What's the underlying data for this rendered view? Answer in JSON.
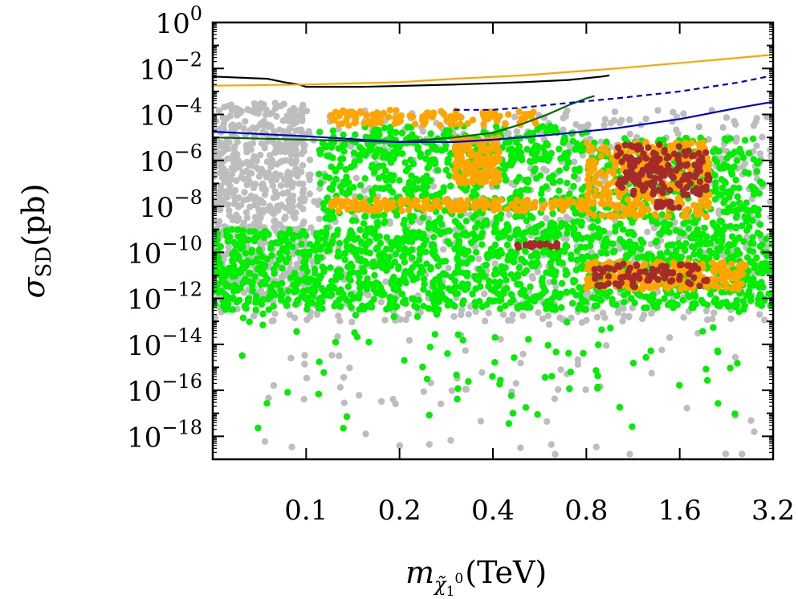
{
  "chart_data": {
    "type": "scatter",
    "title": "",
    "xlabel": {
      "base": "m",
      "subscript": "χ̃",
      "subsub": "1",
      "sup": "0",
      "unit": "(TeV)"
    },
    "ylabel": {
      "base": "σ",
      "subscript": "SD",
      "unit": "(pb)"
    },
    "x_scale": "log2",
    "y_scale": "log10",
    "xlim": [
      0.05,
      3.2
    ],
    "ylim": [
      1e-19,
      1
    ],
    "x_ticks": [
      0.1,
      0.2,
      0.4,
      0.8,
      1.6,
      3.2
    ],
    "x_tick_labels": [
      "0.1",
      "0.2",
      "0.4",
      "0.8",
      "1.6",
      "3.2"
    ],
    "y_ticks": [
      {
        "base": "10",
        "exp": "0"
      },
      {
        "base": "10",
        "exp": "−2"
      },
      {
        "base": "10",
        "exp": "−4"
      },
      {
        "base": "10",
        "exp": "−6"
      },
      {
        "base": "10",
        "exp": "−8"
      },
      {
        "base": "10",
        "exp": "−10"
      },
      {
        "base": "10",
        "exp": "−12"
      },
      {
        "base": "10",
        "exp": "−14"
      },
      {
        "base": "10",
        "exp": "−16"
      },
      {
        "base": "10",
        "exp": "−18"
      }
    ],
    "y_tick_values": [
      0,
      -2,
      -4,
      -6,
      -8,
      -10,
      -12,
      -14,
      -16,
      -18
    ],
    "colors": {
      "gray": "#bdbdbd",
      "green": "#00ee00",
      "orange": "#ffa500",
      "brown": "#a52a2a",
      "black_line": "#000000",
      "orange_line": "#ffa500",
      "darkgreen_line": "#006400",
      "blue_line": "#0000cc",
      "blue_dashed": "#0000cc"
    },
    "scatter_regions": [
      {
        "name": "gray",
        "color": "#bdbdbd",
        "blobs": [
          {
            "x": [
              0.05,
              3.2
            ],
            "logy": [
              -13,
              -3.8
            ],
            "n": 900
          },
          {
            "x": [
              0.05,
              0.1
            ],
            "logy": [
              -12,
              -3.5
            ],
            "n": 500
          },
          {
            "x": [
              0.07,
              3.0
            ],
            "logy": [
              -18.8,
              -13
            ],
            "n": 70
          }
        ]
      },
      {
        "name": "green",
        "color": "#00ee00",
        "blobs": [
          {
            "x": [
              0.05,
              3.2
            ],
            "logy": [
              -12.5,
              -9
            ],
            "n": 1400
          },
          {
            "x": [
              0.11,
              3.0
            ],
            "logy": [
              -9,
              -5
            ],
            "n": 800
          },
          {
            "x": [
              0.06,
              2.5
            ],
            "logy": [
              -17.8,
              -12.5
            ],
            "n": 80
          },
          {
            "x": [
              0.11,
              0.8
            ],
            "logy": [
              -6,
              -4.5
            ],
            "n": 150
          }
        ]
      },
      {
        "name": "orange",
        "color": "#ffa500",
        "blobs": [
          {
            "x": [
              0.12,
              0.8
            ],
            "logy": [
              -8.2,
              -7.7
            ],
            "n": 180
          },
          {
            "x": [
              0.3,
              0.42
            ],
            "logy": [
              -7,
              -5
            ],
            "n": 150
          },
          {
            "x": [
              0.8,
              2.0
            ],
            "logy": [
              -8.5,
              -5.2
            ],
            "n": 300
          },
          {
            "x": [
              0.8,
              2.6
            ],
            "logy": [
              -11.6,
              -10.4
            ],
            "n": 250
          },
          {
            "x": [
              0.12,
              0.55
            ],
            "logy": [
              -4.5,
              -3.8
            ],
            "n": 120
          }
        ]
      },
      {
        "name": "brown",
        "color": "#a52a2a",
        "blobs": [
          {
            "x": [
              1.0,
              2.0
            ],
            "logy": [
              -7.5,
              -5.3
            ],
            "n": 160
          },
          {
            "x": [
              0.85,
              2.0
            ],
            "logy": [
              -11.5,
              -10.5
            ],
            "n": 80
          },
          {
            "x": [
              0.48,
              0.65
            ],
            "logy": [
              -9.8,
              -9.6
            ],
            "n": 20
          },
          {
            "x": [
              1.35,
              1.6
            ],
            "logy": [
              -8.1,
              -7.8
            ],
            "n": 15
          }
        ]
      }
    ],
    "series": [
      {
        "name": "black_line",
        "color": "#000000",
        "dash": false,
        "x": [
          0.05,
          0.075,
          0.085,
          0.095,
          0.1,
          0.15,
          0.3,
          0.5,
          0.7,
          0.9,
          0.95
        ],
        "logy": [
          -2.35,
          -2.45,
          -2.6,
          -2.7,
          -2.8,
          -2.8,
          -2.7,
          -2.6,
          -2.5,
          -2.35,
          -2.3
        ]
      },
      {
        "name": "orange_line",
        "color": "#ffa500",
        "dash": false,
        "x": [
          0.05,
          0.1,
          0.2,
          0.3,
          0.5,
          1.0,
          2.0,
          3.2
        ],
        "logy": [
          -2.75,
          -2.7,
          -2.6,
          -2.45,
          -2.3,
          -2.0,
          -1.65,
          -1.4
        ]
      },
      {
        "name": "darkgreen_line",
        "color": "#006400",
        "dash": false,
        "x": [
          0.05,
          0.1,
          0.2,
          0.3,
          0.4,
          0.5,
          0.6,
          0.7,
          0.8,
          0.85
        ],
        "logy": [
          -5.0,
          -5.1,
          -5.2,
          -5.0,
          -4.8,
          -4.4,
          -4.0,
          -3.6,
          -3.3,
          -3.2
        ]
      },
      {
        "name": "blue_line",
        "color": "#0000cc",
        "dash": false,
        "x": [
          0.05,
          0.1,
          0.2,
          0.3,
          0.4,
          0.6,
          1.0,
          1.6,
          2.5,
          3.2
        ],
        "logy": [
          -4.75,
          -4.95,
          -5.2,
          -5.2,
          -5.1,
          -4.9,
          -4.6,
          -4.2,
          -3.7,
          -3.45
        ]
      },
      {
        "name": "blue_dashed",
        "color": "#0000cc",
        "dash": true,
        "x": [
          0.3,
          0.4,
          0.5,
          0.7,
          1.0,
          1.6,
          2.5,
          3.2
        ],
        "logy": [
          -3.8,
          -3.8,
          -3.7,
          -3.5,
          -3.3,
          -3.0,
          -2.6,
          -2.3
        ]
      }
    ]
  }
}
